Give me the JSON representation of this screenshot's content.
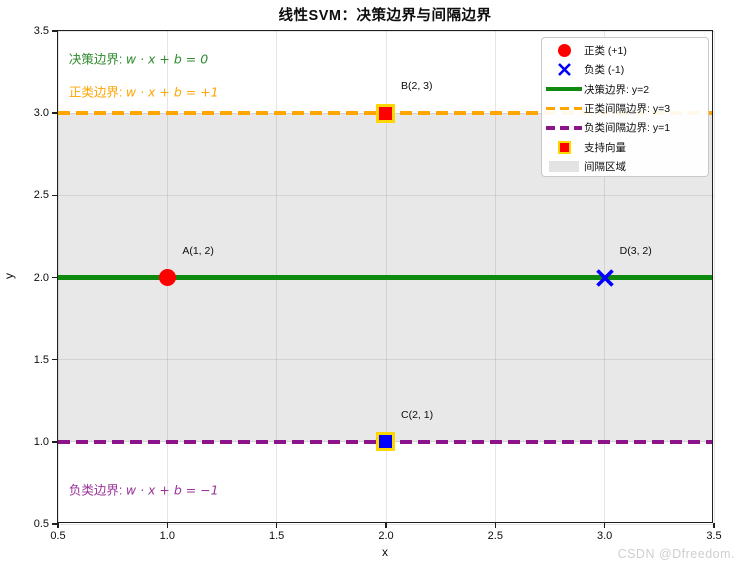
{
  "watermark": "CSDN @Dfreedom.",
  "chart_data": {
    "type": "scatter",
    "title": "线性SVM：决策边界与间隔边界",
    "xlabel": "x",
    "ylabel": "y",
    "xlim": [
      0.5,
      3.5
    ],
    "ylim": [
      0.5,
      3.5
    ],
    "xticks": [
      "0.5",
      "1.0",
      "1.5",
      "2.0",
      "2.5",
      "3.0",
      "3.5"
    ],
    "yticks": [
      "0.5",
      "1.0",
      "1.5",
      "2.0",
      "2.5",
      "3.0",
      "3.5"
    ],
    "grid": true,
    "margin_region": {
      "y_from": 1,
      "y_to": 3,
      "label": "间隔区域"
    },
    "lines": [
      {
        "y": 2,
        "style": "solid",
        "color": "#0e8a0e",
        "width": 4.2,
        "label": "决策边界: y=2"
      },
      {
        "y": 3,
        "style": "dashed",
        "color": "#ffa500",
        "width": 3.5,
        "label": "正类间隔边界: y=3"
      },
      {
        "y": 1,
        "style": "dashed",
        "color": "#8b148b",
        "width": 3.5,
        "label": "负类间隔边界: y=1"
      }
    ],
    "points": [
      {
        "x": 1,
        "y": 2,
        "label": "A(1, 2)",
        "marker": "circle",
        "color": "#ff0000",
        "class": "正类 (+1)",
        "support_vector": false
      },
      {
        "x": 2,
        "y": 3,
        "label": "B(2, 3)",
        "marker": "square",
        "color": "#ff0000",
        "edge_color": "#ffd700",
        "class": "正类 (+1)",
        "support_vector": true
      },
      {
        "x": 2,
        "y": 1,
        "label": "C(2, 1)",
        "marker": "square",
        "color": "#0000ff",
        "edge_color": "#ffd700",
        "class": "负类 (-1)",
        "support_vector": true
      },
      {
        "x": 3,
        "y": 2,
        "label": "D(3, 2)",
        "marker": "x",
        "color": "#0000ff",
        "class": "负类 (-1)",
        "support_vector": false
      }
    ],
    "annotations": [
      {
        "prefix": "决策边界: ",
        "formula": "w · x + b = 0",
        "color": "#2e8b2e",
        "x": 0.55,
        "y": 3.335
      },
      {
        "prefix": "正类边界: ",
        "formula": "w · x + b = +1",
        "color": "#ffa500",
        "x": 0.55,
        "y": 3.135
      },
      {
        "prefix": "负类边界: ",
        "formula": "w · x + b = −1",
        "color": "#993399",
        "x": 0.55,
        "y": 0.715
      }
    ],
    "legend": {
      "position": "upper right",
      "items": [
        {
          "label": "正类 (+1)",
          "marker": "circle",
          "color": "#ff0000"
        },
        {
          "label": "负类 (-1)",
          "marker": "x",
          "color": "#0000ff"
        },
        {
          "label": "决策边界: y=2",
          "marker": "line-solid",
          "color": "#0e8a0e"
        },
        {
          "label": "正类间隔边界: y=3",
          "marker": "line-dashed",
          "color": "#ffa500"
        },
        {
          "label": "负类间隔边界: y=1",
          "marker": "line-dashed",
          "color": "#8b148b"
        },
        {
          "label": "支持向量",
          "marker": "square",
          "color": "#ff0000",
          "edge_color": "#ffd700"
        },
        {
          "label": "间隔区域",
          "marker": "patch",
          "color": "#e3e3e3"
        }
      ]
    }
  }
}
